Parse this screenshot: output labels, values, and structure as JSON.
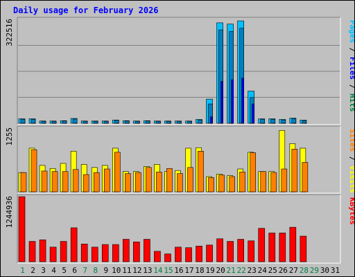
{
  "chart_data": {
    "type": "bar",
    "title": "Daily usage for February 2026",
    "days": [
      "1",
      "2",
      "3",
      "4",
      "5",
      "6",
      "7",
      "8",
      "9",
      "10",
      "11",
      "12",
      "13",
      "14",
      "15",
      "16",
      "17",
      "18",
      "19",
      "20",
      "21",
      "22",
      "23",
      "24",
      "25",
      "26",
      "27",
      "28",
      "29",
      "30",
      "31"
    ],
    "weekend_days": [
      "1",
      "7",
      "8",
      "14",
      "15",
      "21",
      "22",
      "28",
      "29"
    ],
    "panels": [
      {
        "id": "hits",
        "max_label": "322516",
        "ylim": [
          0,
          322516
        ],
        "side_labels": [
          {
            "text": "Pages",
            "color": "#00c0ff"
          },
          {
            "text": " / ",
            "color": "#000000"
          },
          {
            "text": "Files",
            "color": "#0000ff"
          },
          {
            "text": " / ",
            "color": "#000000"
          },
          {
            "text": "Hits",
            "color": "#008040"
          }
        ],
        "series": [
          {
            "name": "Hits",
            "color": "#00c0ff",
            "values": [
              14000,
              14000,
              7000,
              7000,
              8000,
              15000,
              7000,
              7000,
              7000,
              10000,
              8000,
              7000,
              8000,
              7000,
              7000,
              7000,
              7000,
              12000,
              75000,
              312000,
              308000,
              318000,
              100000,
              14000,
              14000,
              12000,
              16000,
              10000,
              0,
              0,
              0
            ]
          },
          {
            "name": "Files",
            "color": "#0080c0",
            "values": [
              12000,
              12000,
              6000,
              6000,
              7000,
              13000,
              6000,
              6000,
              6000,
              9000,
              7000,
              6000,
              7000,
              6000,
              6000,
              6000,
              6000,
              10000,
              60000,
              290000,
              285000,
              295000,
              80000,
              12000,
              12000,
              10000,
              14000,
              8000,
              0,
              0,
              0
            ]
          },
          {
            "name": "Pages",
            "color": "#0000ff",
            "values": [
              500,
              500,
              400,
              400,
              400,
              600,
              400,
              400,
              400,
              500,
              400,
              400,
              400,
              400,
              400,
              400,
              400,
              500,
              20000,
              130000,
              135000,
              140000,
              60000,
              500,
              500,
              500,
              600,
              500,
              0,
              0,
              0
            ]
          }
        ]
      },
      {
        "id": "visits",
        "max_label": "1255",
        "ylim": [
          0,
          1255
        ],
        "side_labels": [
          {
            "text": "Sites",
            "color": "#ff8000"
          },
          {
            "text": " / ",
            "color": "#000000"
          },
          {
            "text": "Visits",
            "color": "#ffff00"
          }
        ],
        "series": [
          {
            "name": "Visits",
            "color": "#ffff00",
            "values": [
              380,
              860,
              520,
              460,
              560,
              800,
              540,
              480,
              520,
              860,
              400,
              400,
              500,
              540,
              400,
              420,
              860,
              870,
              300,
              350,
              320,
              450,
              780,
              400,
              400,
              1210,
              950,
              860,
              0,
              0,
              0
            ]
          },
          {
            "name": "Sites",
            "color": "#ff8000",
            "values": [
              380,
              830,
              410,
              400,
              400,
              440,
              340,
              380,
              450,
              780,
              360,
              380,
              480,
              390,
              460,
              360,
              480,
              800,
              280,
              330,
              300,
              390,
              770,
              400,
              380,
              450,
              840,
              580,
              0,
              0,
              0
            ]
          }
        ]
      },
      {
        "id": "kbytes",
        "max_label": "1244936",
        "ylim": [
          0,
          1244936
        ],
        "side_labels": [
          {
            "text": "KBytes",
            "color": "#ff0000"
          }
        ],
        "series": [
          {
            "name": "KBytes",
            "color": "#ff0000",
            "values": [
              1244936,
              390000,
              420000,
              280000,
              390000,
              650000,
              340000,
              280000,
              330000,
              330000,
              430000,
              380000,
              430000,
              200000,
              150000,
              280000,
              270000,
              300000,
              320000,
              440000,
              390000,
              430000,
              400000,
              640000,
              550000,
              550000,
              660000,
              490000,
              0,
              0,
              0
            ]
          }
        ]
      }
    ]
  }
}
